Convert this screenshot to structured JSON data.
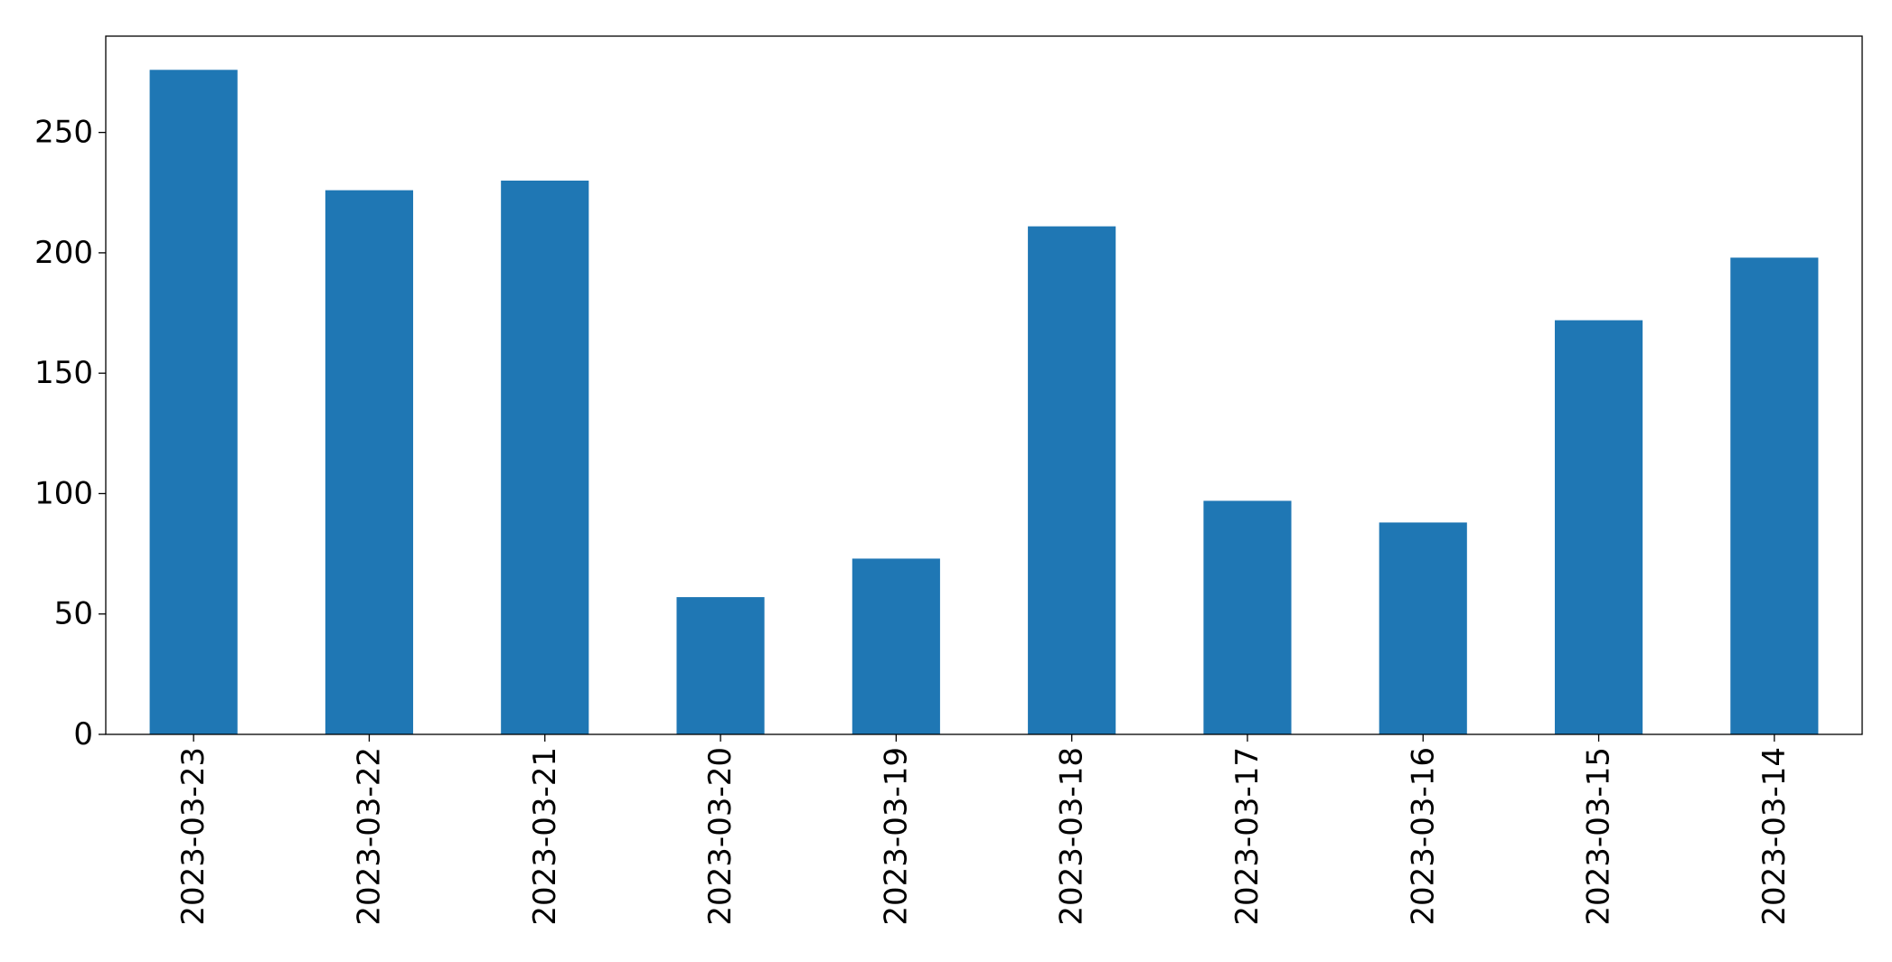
{
  "chart_data": {
    "type": "bar",
    "categories": [
      "2023-03-23",
      "2023-03-22",
      "2023-03-21",
      "2023-03-20",
      "2023-03-19",
      "2023-03-18",
      "2023-03-17",
      "2023-03-16",
      "2023-03-15",
      "2023-03-14"
    ],
    "series": [
      {
        "values": [
          276,
          226,
          230,
          57,
          73,
          211,
          97,
          88,
          172,
          198
        ],
        "color": "#1f77b4"
      }
    ],
    "title": "",
    "xlabel": "",
    "ylabel": "",
    "ylim": [
      0,
      290
    ],
    "yticks": [
      0,
      50,
      100,
      150,
      200,
      250
    ],
    "ytick_labels": [
      "0",
      "50",
      "100",
      "150",
      "200",
      "250"
    ],
    "grid": false,
    "legend": "none"
  }
}
